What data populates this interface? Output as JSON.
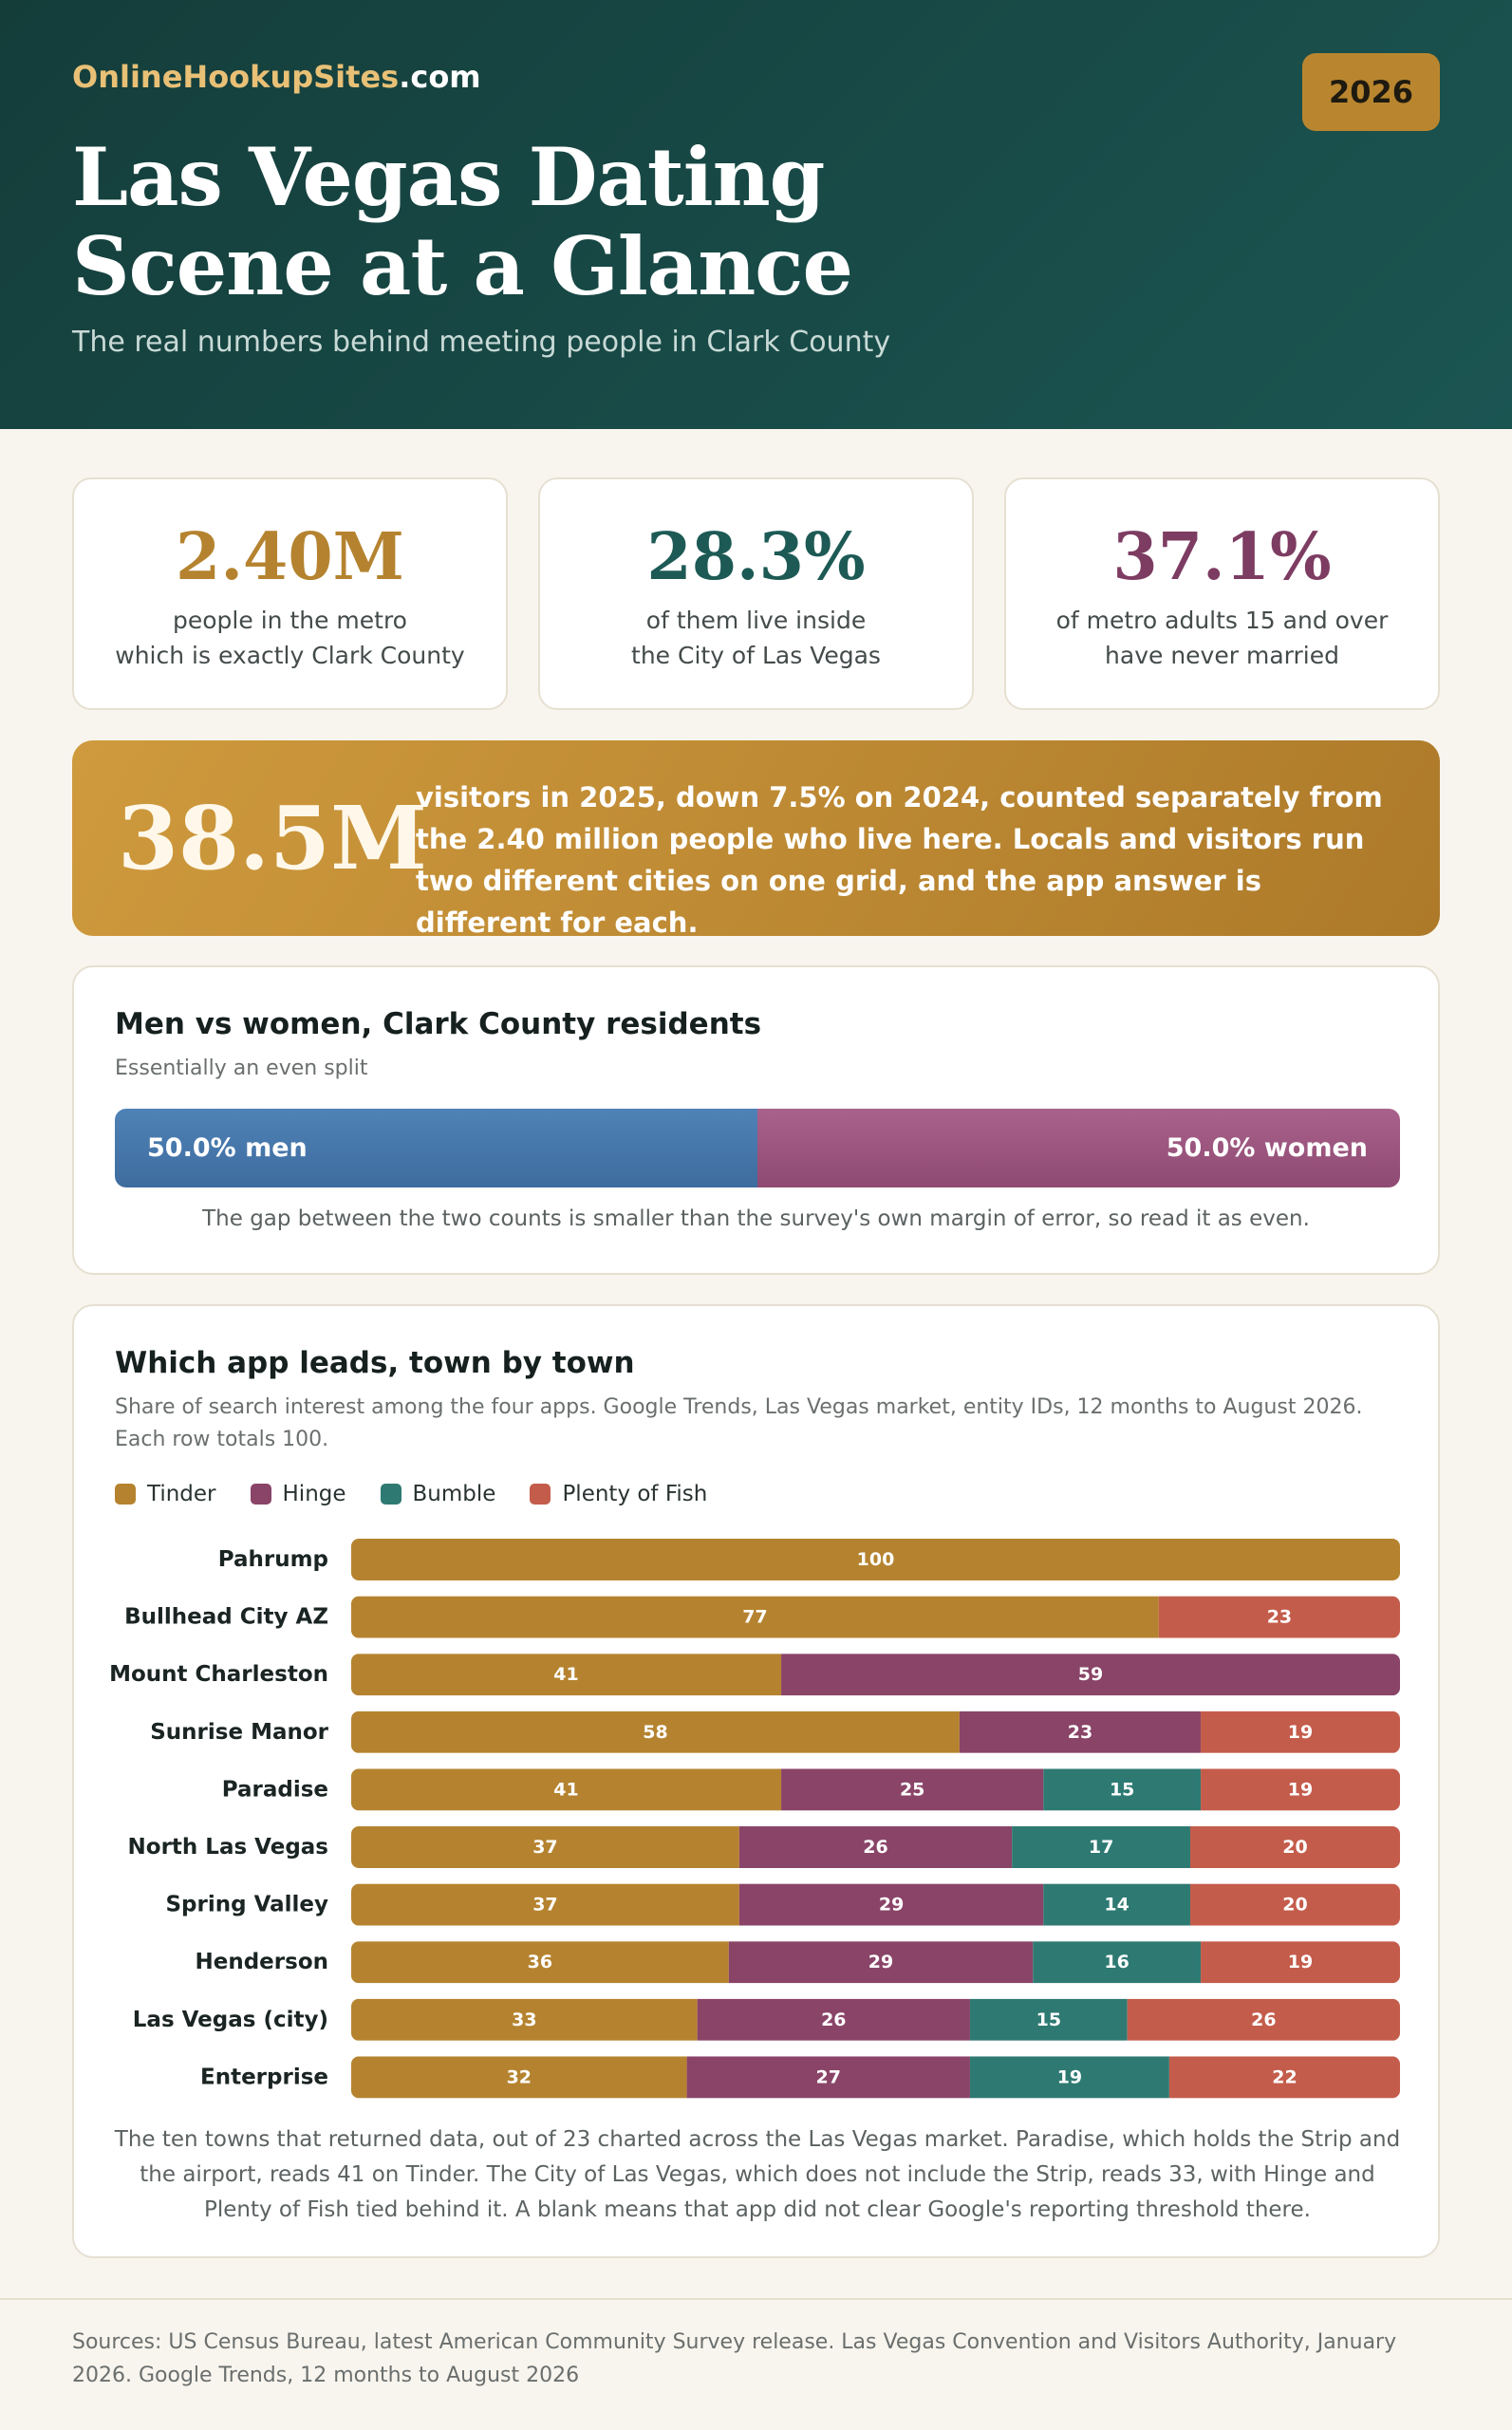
{
  "header": {
    "brand_main": "OnlineHookupSites",
    "brand_tld": ".com",
    "year_badge": "2026",
    "title": "Las Vegas Dating Scene at a Glance",
    "subtitle": "The real numbers behind meeting people in Clark County"
  },
  "colors": {
    "header_bg": "#174845",
    "gold": "#b5832f",
    "teal": "#1d5a55",
    "plum": "#7d3c62",
    "men": "#4576aa",
    "women": "#9c5580"
  },
  "stats": [
    {
      "value": "2.40M",
      "line1": "people in the metro",
      "line2": "which is exactly Clark County",
      "color": "#b5832f"
    },
    {
      "value": "28.3%",
      "line1": "of them live inside",
      "line2": "the City of Las Vegas",
      "color": "#1d5a55"
    },
    {
      "value": "37.1%",
      "line1": "of metro adults 15 and over",
      "line2": "have never married",
      "color": "#7d3c62"
    }
  ],
  "banner": {
    "value": "38.5M",
    "text": "visitors in 2025, down 7.5% on 2024, counted separately from the 2.40 million people who live here. Locals and visitors run two different cities on one grid, and the app answer is different for each."
  },
  "gender": {
    "title": "Men vs women, Clark County residents",
    "subtitle": "Essentially an even split",
    "men_label": "50.0% men",
    "women_label": "50.0% women",
    "men_share": 50.0,
    "women_share": 50.0,
    "note": "The gap between the two counts is smaller than the survey's own margin of error, so read it as even."
  },
  "apps": {
    "title": "Which app leads, town by town",
    "subtitle": "Share of search interest among the four apps. Google Trends, Las Vegas market, entity IDs, 12 months to August 2026. Each row totals 100.",
    "note": "The ten towns that returned data, out of 23 charted across the Las Vegas market. Paradise, which holds the Strip and the airport, reads 41 on Tinder. The City of Las Vegas, which does not include the Strip, reads 33, with Hinge and Plenty of Fish tied behind it. A blank means that app did not clear Google's reporting threshold there."
  },
  "chart_data": {
    "type": "bar",
    "orientation": "horizontal",
    "stacked": true,
    "categories": [
      "Pahrump",
      "Bullhead City AZ",
      "Mount Charleston",
      "Sunrise Manor",
      "Paradise",
      "North Las Vegas",
      "Spring Valley",
      "Henderson",
      "Las Vegas (city)",
      "Enterprise"
    ],
    "series": [
      {
        "name": "Tinder",
        "color": "#b5832f",
        "values": [
          100,
          77,
          41,
          58,
          41,
          37,
          37,
          36,
          33,
          32
        ]
      },
      {
        "name": "Hinge",
        "color": "#8a4468",
        "values": [
          null,
          null,
          59,
          23,
          25,
          26,
          29,
          29,
          26,
          27
        ]
      },
      {
        "name": "Bumble",
        "color": "#2e7a73",
        "values": [
          null,
          null,
          null,
          null,
          15,
          17,
          14,
          16,
          15,
          19
        ]
      },
      {
        "name": "Plenty of Fish",
        "color": "#c45c4b",
        "values": [
          null,
          23,
          null,
          19,
          19,
          20,
          20,
          19,
          26,
          22
        ]
      }
    ],
    "xlim": [
      0,
      100
    ],
    "legend": "top-left",
    "grid": false
  },
  "footer": {
    "sources": "Sources: US Census Bureau, latest American Community Survey release. Las Vegas Convention and Visitors Authority, January 2026. Google Trends, 12 months to August 2026"
  }
}
